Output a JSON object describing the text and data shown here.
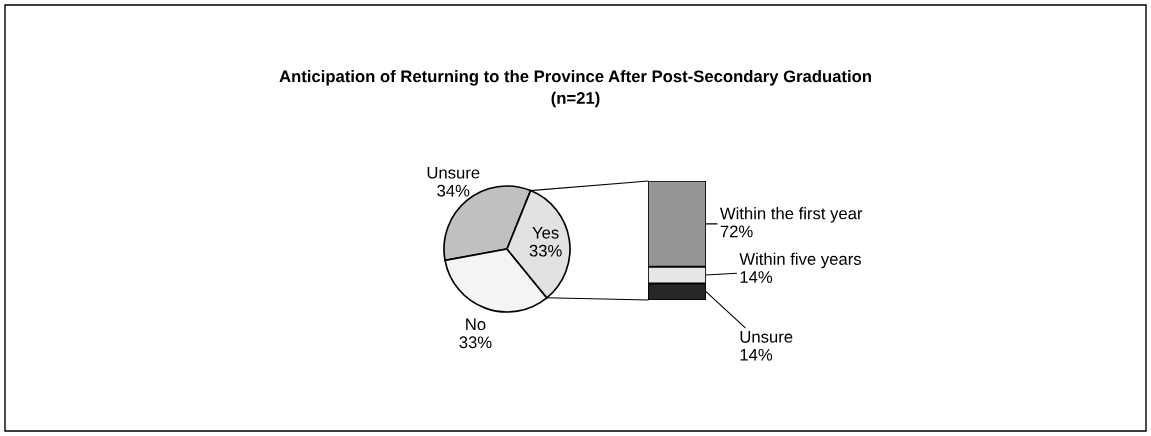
{
  "chart_data": [
    {
      "type": "pie",
      "title": "Anticipation of Returning to the Province After Post-Secondary Graduation\n(n=21)",
      "categories": [
        "Unsure",
        "No",
        "Yes"
      ],
      "values": [
        34,
        33,
        33
      ],
      "colors": [
        "#c0c0c0",
        "#f4f4f4",
        "#e2e2e2"
      ],
      "value_labels": [
        "34%",
        "33%",
        "33%"
      ]
    },
    {
      "type": "bar",
      "stacked": true,
      "categories": [
        null
      ],
      "tick_labels": false,
      "series": [
        {
          "name": "Unsure",
          "color": "#262626",
          "values": [
            14
          ],
          "value_labels": [
            "14%"
          ]
        },
        {
          "name": "Within five years",
          "color": "#e6e6e6",
          "values": [
            14
          ],
          "value_labels": [
            "14%"
          ]
        },
        {
          "name": "Within the first year",
          "color": "#969696",
          "values": [
            72
          ],
          "value_labels": [
            "72%"
          ]
        }
      ]
    }
  ]
}
